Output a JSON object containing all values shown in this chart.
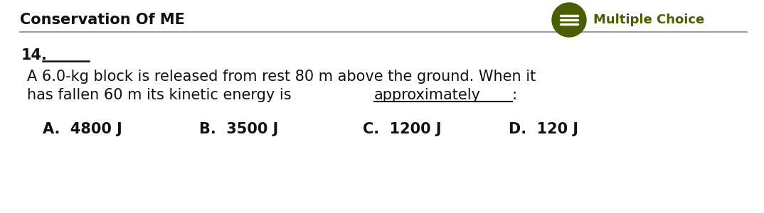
{
  "title": "Conservation Of ME",
  "multiple_choice_label": "Multiple Choice",
  "question_number": "14.",
  "question_underline": "________",
  "question_text_line1": "A 6.0-kg block is released from rest 80 m above the ground. When it",
  "question_text_line2_prefix": "has fallen 60 m its kinetic energy is ",
  "question_text_line2_underlined": "approximately",
  "question_text_line2_suffix": ":",
  "choices": [
    "A.  4800 J",
    "B.  3500 J",
    "C.  1200 J",
    "D.  120 J"
  ],
  "background_color": "#ffffff",
  "title_color": "#111111",
  "text_color": "#111111",
  "line_color": "#888899",
  "circle_fill_color": "#4a5e00",
  "mc_text_color": "#4a5e00",
  "icon_lines_color": "#ffffff",
  "title_fontsize": 15,
  "mc_fontsize": 13,
  "body_fontsize": 15,
  "choices_fontsize": 15
}
